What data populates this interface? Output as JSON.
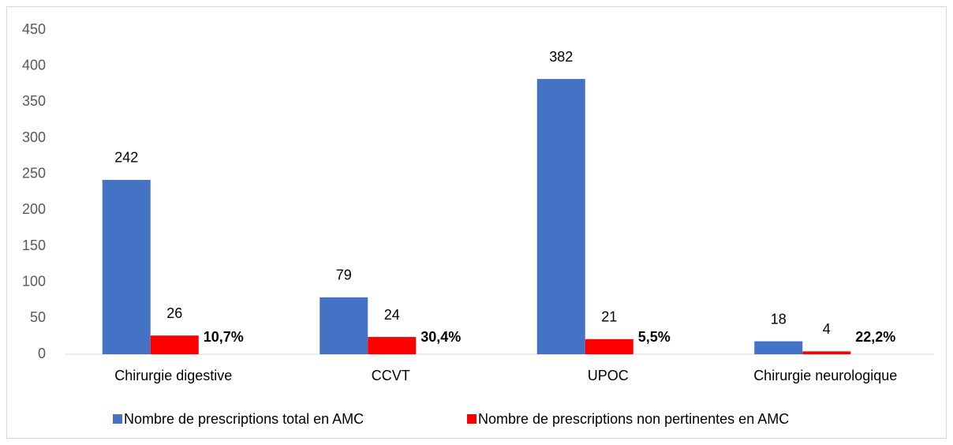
{
  "chart_data": {
    "type": "bar",
    "categories": [
      "Chirurgie digestive",
      "CCVT",
      "UPOC",
      "Chirurgie neurologique"
    ],
    "series": [
      {
        "name": "Nombre de prescriptions total en AMC",
        "color": "#4472c4",
        "values": [
          242,
          79,
          382,
          18
        ]
      },
      {
        "name": "Nombre de prescriptions non pertinentes en AMC",
        "color": "#ff0000",
        "values": [
          26,
          24,
          21,
          4
        ]
      }
    ],
    "annotations": [
      "10,7%",
      "30,4%",
      "5,5%",
      "22,2%"
    ],
    "ylim": [
      0,
      450
    ],
    "yticks": [
      0,
      50,
      100,
      150,
      200,
      250,
      300,
      350,
      400,
      450
    ],
    "grid": false,
    "legend": "bottom"
  }
}
